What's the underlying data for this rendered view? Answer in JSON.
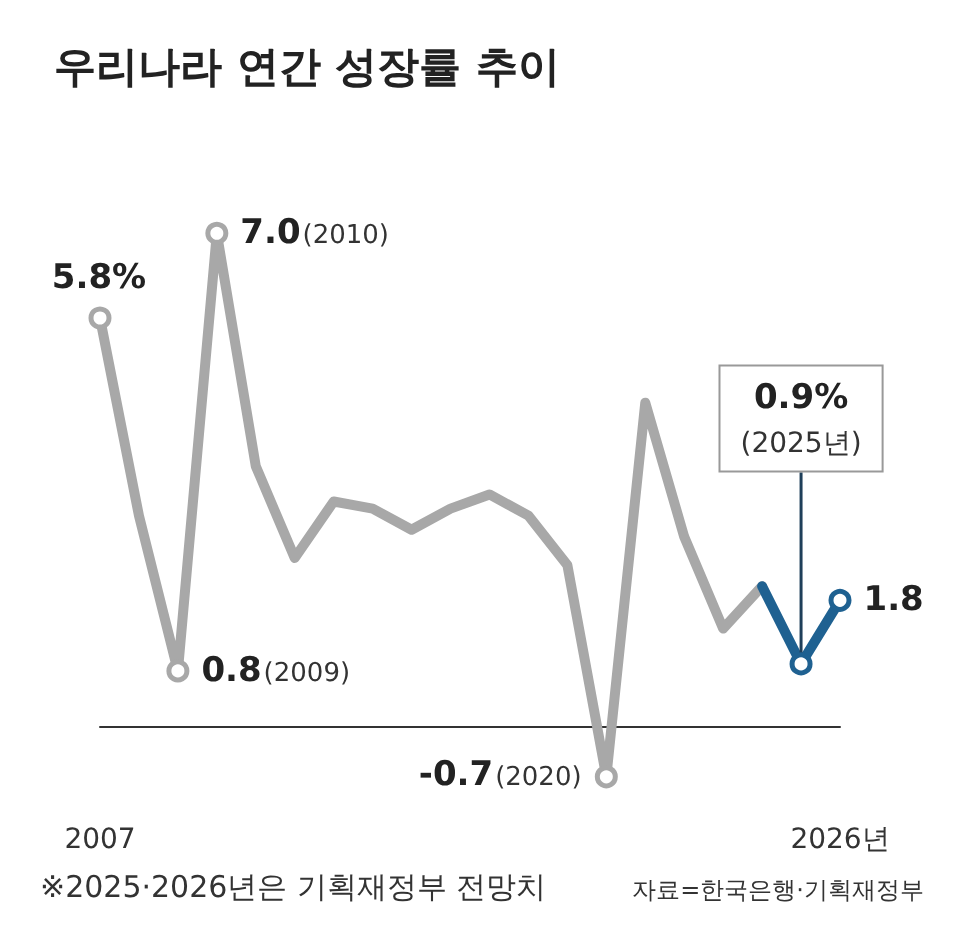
{
  "chart_data": {
    "type": "line",
    "title": "우리나라 연간 성장률 추이",
    "categories": [
      "2007",
      null,
      null,
      null,
      null,
      null,
      null,
      null,
      null,
      null,
      null,
      null,
      null,
      null,
      null,
      null,
      null,
      null,
      null,
      "2026년"
    ],
    "series": [
      {
        "color": "#a8a8a8",
        "values": [
          5.8,
          3.0,
          0.8,
          7.0,
          3.7,
          2.4,
          3.2,
          3.1,
          2.8,
          3.1,
          3.3,
          3.0,
          2.3,
          -0.7,
          4.6,
          2.7,
          1.4,
          2.0,
          null,
          null
        ],
        "value_labels": [
          "5.8%",
          null,
          "0.8(2009)",
          "7.0(2010)",
          null,
          null,
          null,
          null,
          null,
          null,
          null,
          null,
          null,
          "-0.7(2020)",
          null,
          null,
          null,
          null,
          null,
          null
        ]
      },
      {
        "color": "#1f6191",
        "values": [
          null,
          null,
          null,
          null,
          null,
          null,
          null,
          null,
          null,
          null,
          null,
          null,
          null,
          null,
          null,
          null,
          null,
          2.0,
          0.9,
          1.8
        ],
        "value_labels": [
          null,
          null,
          null,
          null,
          null,
          null,
          null,
          null,
          null,
          null,
          null,
          null,
          null,
          null,
          null,
          null,
          null,
          null,
          "0.9%(2025년)",
          "1.8"
        ]
      }
    ],
    "grid": false,
    "tick_labels": "x",
    "annotations": [
      "※2025·2026년은 기획재정부 전망치",
      "자료=한국은행·기획재정부"
    ]
  }
}
